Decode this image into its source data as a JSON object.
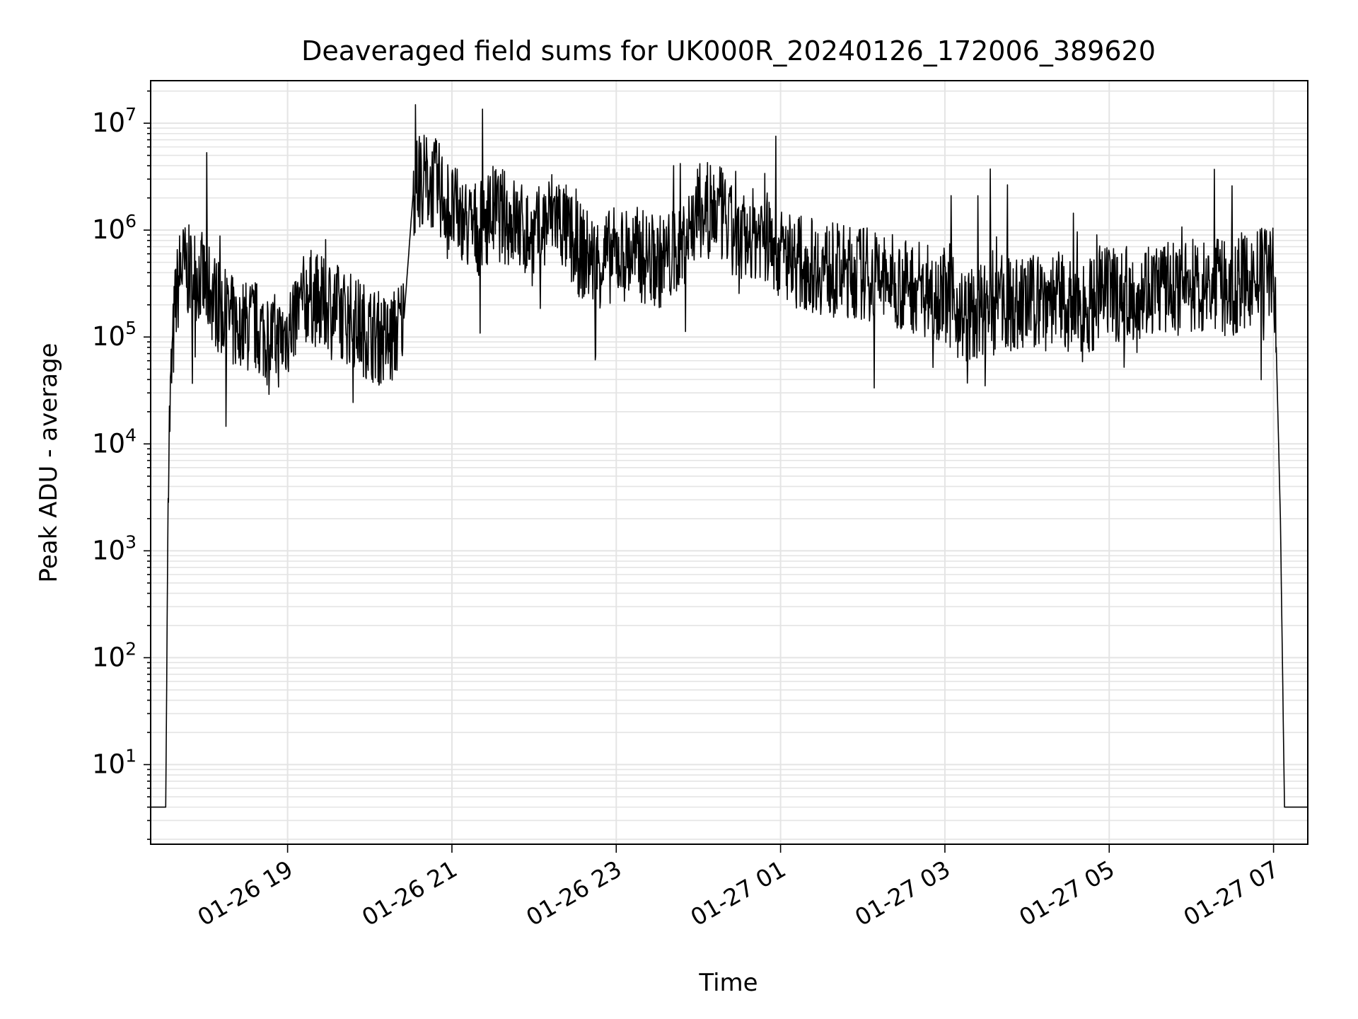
{
  "chart_data": {
    "type": "line",
    "title": "Deaveraged field sums for UK000R_20240126_172006_389620",
    "xlabel": "Time",
    "ylabel": "Peak ADU - average",
    "y_scale": "log",
    "ylim": [
      1.8,
      25000000
    ],
    "xlim": [
      "2024-01-26 17:20",
      "2024-01-27 07:25"
    ],
    "grid": true,
    "series_color": "#000000",
    "x_ticks": [
      "01-26 19",
      "01-26 21",
      "01-26 23",
      "01-27 01",
      "01-27 03",
      "01-27 05",
      "01-27 07"
    ],
    "y_ticks": [
      {
        "base": "10",
        "exp": "1",
        "value": 10
      },
      {
        "base": "10",
        "exp": "2",
        "value": 100
      },
      {
        "base": "10",
        "exp": "3",
        "value": 1000
      },
      {
        "base": "10",
        "exp": "4",
        "value": 10000
      },
      {
        "base": "10",
        "exp": "5",
        "value": 100000
      },
      {
        "base": "10",
        "exp": "6",
        "value": 1000000
      },
      {
        "base": "10",
        "exp": "7",
        "value": 10000000
      }
    ],
    "series": [
      {
        "x": [
          "2024-01-26 17:20",
          "2024-01-26 17:30",
          "2024-01-26 17:31",
          "2024-01-26 17:33",
          "2024-01-26 17:35",
          "2024-01-26 17:38",
          "2024-01-26 17:42",
          "2024-01-26 17:48",
          "2024-01-26 17:55",
          "2024-01-26 18:05",
          "2024-01-26 18:15",
          "2024-01-26 18:25",
          "2024-01-26 18:35",
          "2024-01-26 18:45",
          "2024-01-26 18:55",
          "2024-01-26 19:05",
          "2024-01-26 19:15",
          "2024-01-26 19:25",
          "2024-01-26 19:35",
          "2024-01-26 19:45",
          "2024-01-26 19:55",
          "2024-01-26 20:05",
          "2024-01-26 20:15",
          "2024-01-26 20:25",
          "2024-01-26 20:32",
          "2024-01-26 20:40",
          "2024-01-26 20:50",
          "2024-01-26 21:00",
          "2024-01-26 21:15",
          "2024-01-26 21:30",
          "2024-01-26 21:45",
          "2024-01-26 22:00",
          "2024-01-26 22:15",
          "2024-01-26 22:30",
          "2024-01-26 22:45",
          "2024-01-26 23:00",
          "2024-01-26 23:15",
          "2024-01-26 23:30",
          "2024-01-26 23:45",
          "2024-01-27 00:00",
          "2024-01-27 00:15",
          "2024-01-27 00:30",
          "2024-01-27 00:45",
          "2024-01-27 01:00",
          "2024-01-27 01:15",
          "2024-01-27 01:30",
          "2024-01-27 01:45",
          "2024-01-27 02:00",
          "2024-01-27 02:15",
          "2024-01-27 02:30",
          "2024-01-27 02:45",
          "2024-01-27 03:00",
          "2024-01-27 03:15",
          "2024-01-27 03:30",
          "2024-01-27 03:45",
          "2024-01-27 04:00",
          "2024-01-27 04:15",
          "2024-01-27 04:30",
          "2024-01-27 04:45",
          "2024-01-27 05:00",
          "2024-01-27 05:15",
          "2024-01-27 05:30",
          "2024-01-27 05:45",
          "2024-01-27 06:00",
          "2024-01-27 06:15",
          "2024-01-27 06:30",
          "2024-01-27 06:45",
          "2024-01-27 06:55",
          "2024-01-27 07:00",
          "2024-01-27 07:02",
          "2024-01-27 07:05",
          "2024-01-27 07:08",
          "2024-01-27 07:10",
          "2024-01-27 07:12",
          "2024-01-27 07:25"
        ],
        "y": [
          4,
          4,
          4,
          8000,
          40000,
          200000,
          450000,
          400000,
          380000,
          250000,
          150000,
          120000,
          130000,
          100000,
          90000,
          150000,
          250000,
          200000,
          180000,
          150000,
          120000,
          100000,
          90000,
          150000,
          2500000,
          3000000,
          2500000,
          1500000,
          1000000,
          1500000,
          1200000,
          800000,
          1500000,
          700000,
          500000,
          600000,
          600000,
          500000,
          600000,
          1500000,
          1500000,
          700000,
          1000000,
          600000,
          500000,
          450000,
          400000,
          400000,
          350000,
          300000,
          300000,
          250000,
          150000,
          180000,
          200000,
          200000,
          250000,
          200000,
          200000,
          250000,
          250000,
          300000,
          280000,
          300000,
          300000,
          280000,
          350000,
          400000,
          500000,
          80000,
          2000,
          4,
          4,
          4,
          4
        ]
      }
    ]
  }
}
